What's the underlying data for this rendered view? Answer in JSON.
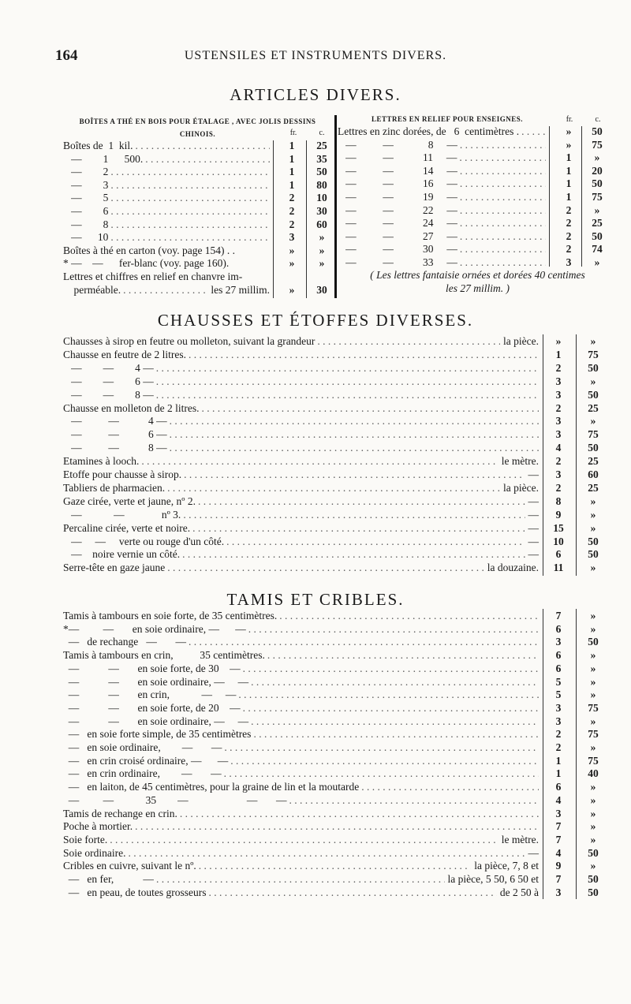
{
  "header": {
    "page_number": "164",
    "running_title": "USTENSILES ET INSTRUMENTS DIVERS."
  },
  "articles": {
    "title": "ARTICLES DIVERS.",
    "boites": {
      "heading": "BOÎTES A THÉ EN BOIS POUR ÉTALAGE , AVEC JOLIS DESSINS CHINOIS.",
      "fr_label": "fr.",
      "c_label": "c.",
      "rows": [
        {
          "label": "Boîtes de  1  kil.",
          "fr": "1",
          "c": "25"
        },
        {
          "label": "   —        1      500.",
          "fr": "1",
          "c": "35"
        },
        {
          "label": "   —        2",
          "fr": "1",
          "c": "50"
        },
        {
          "label": "   —        3",
          "fr": "1",
          "c": "80"
        },
        {
          "label": "   —        5",
          "fr": "2",
          "c": "10"
        },
        {
          "label": "   —        6",
          "fr": "2",
          "c": "30"
        },
        {
          "label": "   —        8",
          "fr": "2",
          "c": "60"
        },
        {
          "label": "   —      10",
          "fr": "3",
          "c": "»"
        },
        {
          "label": "Boîtes à thé en carton (voy. page 154) . .",
          "fr": "»",
          "c": "»",
          "noleader": true
        },
        {
          "label": "* —    —      fer-blanc (voy. page 160).",
          "fr": "»",
          "c": "»",
          "noleader": true
        },
        {
          "label": "Lettres et chiffres en relief en chanvre im-",
          "fr": "",
          "c": "",
          "noleader": true
        },
        {
          "label": "    perméable.",
          "suffix": "les 27 millim.",
          "fr": "»",
          "c": "30"
        }
      ]
    },
    "lettres": {
      "heading": "LETTRES EN RELIEF POUR ENSEIGNES.",
      "fr_label": "fr.",
      "c_label": "c.",
      "rows": [
        {
          "label": "Lettres en zinc dorées, de   6  centimètres .",
          "fr": "»",
          "c": "50"
        },
        {
          "label": "   —          —             8     —",
          "fr": "»",
          "c": "75"
        },
        {
          "label": "   —          —           11     —",
          "fr": "1",
          "c": "»"
        },
        {
          "label": "   —          —           14     —",
          "fr": "1",
          "c": "20"
        },
        {
          "label": "   —          —           16     —",
          "fr": "1",
          "c": "50"
        },
        {
          "label": "   —          —           19     —",
          "fr": "1",
          "c": "75"
        },
        {
          "label": "   —          —           22     —",
          "fr": "2",
          "c": "»"
        },
        {
          "label": "   —          —           24     —",
          "fr": "2",
          "c": "25"
        },
        {
          "label": "   —          —           27     —",
          "fr": "2",
          "c": "50"
        },
        {
          "label": "   —          —           30     —",
          "fr": "2",
          "c": "74"
        },
        {
          "label": "   —          —           33     —",
          "fr": "3",
          "c": "»"
        }
      ],
      "note_line1": "( Les lettres fantaisie ornées et dorées 40 centimes",
      "note_line2": "les 27 millim. )"
    }
  },
  "chausses": {
    "title": "CHAUSSES ET ÉTOFFES DIVERSES.",
    "rows": [
      {
        "label": "Chausses à sirop en feutre ou molleton, suivant la grandeur",
        "suffix": "la pièce.",
        "fr": "»",
        "c": "»"
      },
      {
        "label": "Chausse en feutre de 2 litres.",
        "fr": "1",
        "c": "75"
      },
      {
        "label": "   —        —        4 —",
        "fr": "2",
        "c": "50"
      },
      {
        "label": "   —        —        6 —",
        "fr": "3",
        "c": "»"
      },
      {
        "label": "   —        —        8 —",
        "fr": "3",
        "c": "50"
      },
      {
        "label": "Chausse en molleton de 2 litres.",
        "fr": "2",
        "c": "25"
      },
      {
        "label": "   —          —           4 —",
        "fr": "3",
        "c": "»"
      },
      {
        "label": "   —          —           6 —",
        "fr": "3",
        "c": "75"
      },
      {
        "label": "   —          —           8 —",
        "fr": "4",
        "c": "50"
      },
      {
        "label": "Etamines à looch.",
        "suffix": "le mètre.",
        "fr": "2",
        "c": "25"
      },
      {
        "label": "Etoffe pour chausse à sirop.",
        "suffix": "—",
        "fr": "3",
        "c": "60"
      },
      {
        "label": "Tabliers de pharmacien.",
        "suffix": "la pièce.",
        "fr": "2",
        "c": "25"
      },
      {
        "label": "Gaze cirée, verte et jaune, nº 2.",
        "suffix": "—",
        "fr": "8",
        "c": "»"
      },
      {
        "label": "   —            —              nº 3.",
        "suffix": "—",
        "fr": "9",
        "c": "»"
      },
      {
        "label": "Percaline cirée, verte et noire.",
        "suffix": "—",
        "fr": "15",
        "c": "»"
      },
      {
        "label": "   —     —     verte ou rouge d'un côté.",
        "suffix": "—",
        "fr": "10",
        "c": "50"
      },
      {
        "label": "   —    noire vernie un côté.",
        "suffix": "—",
        "fr": "6",
        "c": "50"
      },
      {
        "label": "Serre-tête en gaze jaune",
        "suffix": "la douzaine.",
        "fr": "11",
        "c": "»"
      }
    ]
  },
  "tamis": {
    "title": "TAMIS ET CRIBLES.",
    "rows": [
      {
        "label": "Tamis à tambours en soie forte, de 35 centimètres.",
        "fr": "7",
        "c": "»"
      },
      {
        "label": "*—         —       en soie ordinaire, —      —",
        "fr": "6",
        "c": "»"
      },
      {
        "label": "  —   de rechange   —       —",
        "fr": "3",
        "c": "50"
      },
      {
        "label": "Tamis à tambours en crin,          35 centimètres.",
        "fr": "6",
        "c": "»"
      },
      {
        "label": "  —           —       en soie forte, de 30    —",
        "fr": "6",
        "c": "»"
      },
      {
        "label": "  —           —       en soie ordinaire, —     —",
        "fr": "5",
        "c": "»"
      },
      {
        "label": "  —           —       en crin,            —     —",
        "fr": "5",
        "c": "»"
      },
      {
        "label": "  —           —       en soie forte, de 20    —",
        "fr": "3",
        "c": "75"
      },
      {
        "label": "  —           —       en soie ordinaire, —     —",
        "fr": "3",
        "c": "»"
      },
      {
        "label": "  —   en soie forte simple, de 35 centimètres",
        "fr": "2",
        "c": "75"
      },
      {
        "label": "  —   en soie ordinaire,        —       —",
        "fr": "2",
        "c": "»"
      },
      {
        "label": "  —   en crin croisé ordinaire, —      —",
        "fr": "1",
        "c": "75"
      },
      {
        "label": "  —   en crin ordinaire,        —       —",
        "fr": "1",
        "c": "40"
      },
      {
        "label": "  —   en laiton, de 45 centimètres, pour la graine de lin et la moutarde",
        "fr": "6",
        "c": "»"
      },
      {
        "label": "  —         —            35        —                      —       —",
        "fr": "4",
        "c": "»"
      },
      {
        "label": "Tamis de rechange en crin.",
        "fr": "3",
        "c": "»"
      },
      {
        "label": "Poche à mortier.",
        "fr": "7",
        "c": "»"
      },
      {
        "label": "Soie forte.",
        "suffix": "le mètre.",
        "fr": "7",
        "c": "»"
      },
      {
        "label": "Soie ordinaire.",
        "suffix": "—",
        "fr": "4",
        "c": "50"
      },
      {
        "label": "Cribles en cuivre, suivant le nº.",
        "suffix": "la pièce, 7, 8 et",
        "fr": "9",
        "c": "»"
      },
      {
        "label": "  —   en fer,           —",
        "suffix": "la pièce, 5 50, 6 50 et",
        "fr": "7",
        "c": "50"
      },
      {
        "label": "  —   en peau, de toutes grosseurs",
        "suffix": "de 2 50 à",
        "fr": "3",
        "c": "50"
      }
    ]
  }
}
